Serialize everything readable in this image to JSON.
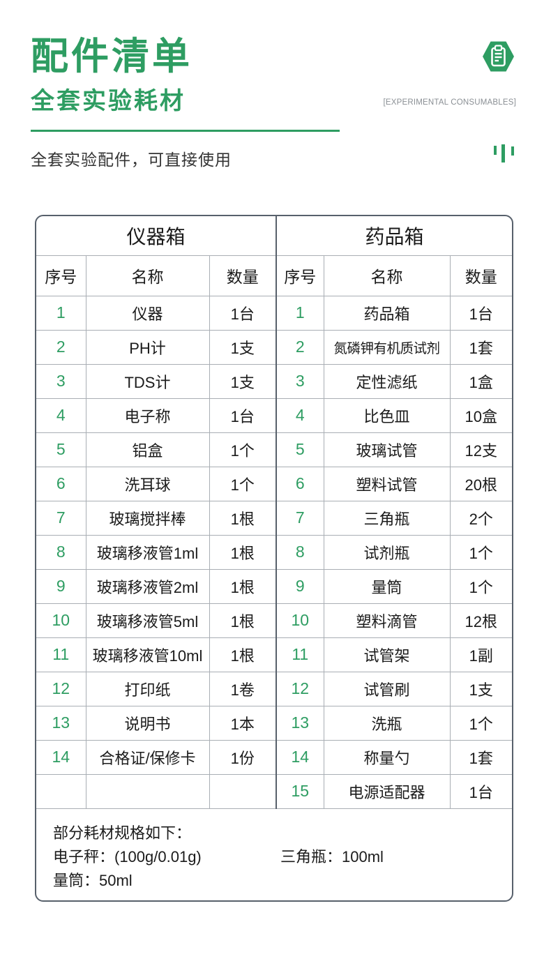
{
  "colors": {
    "green": "#2e9d62",
    "table_outer_border": "#57606b",
    "table_inner_border": "#a9aeb4",
    "text": "#1b1b1b",
    "eng_label_gray": "#8a8f94"
  },
  "header": {
    "title": "配件清单",
    "subtitle": "全套实验耗材",
    "subtitle_en": "[EXPERIMENTAL CONSUMABLES]",
    "tagline": "全套实验配件，可直接使用",
    "icon": "clipboard-hexagon-icon"
  },
  "table": {
    "left_title": "仪器箱",
    "right_title": "药品箱",
    "columns": [
      "序号",
      "名称",
      "数量"
    ],
    "rows": [
      {
        "l_no": "1",
        "l_name": "仪器",
        "l_qty": "1台",
        "r_no": "1",
        "r_name": "药品箱",
        "r_qty": "1台"
      },
      {
        "l_no": "2",
        "l_name": "PH计",
        "l_qty": "1支",
        "r_no": "2",
        "r_name": "氮磷钾有机质试剂",
        "r_qty": "1套"
      },
      {
        "l_no": "3",
        "l_name": "TDS计",
        "l_qty": "1支",
        "r_no": "3",
        "r_name": "定性滤纸",
        "r_qty": "1盒"
      },
      {
        "l_no": "4",
        "l_name": "电子称",
        "l_qty": "1台",
        "r_no": "4",
        "r_name": "比色皿",
        "r_qty": "10盒"
      },
      {
        "l_no": "5",
        "l_name": "铝盒",
        "l_qty": "1个",
        "r_no": "5",
        "r_name": "玻璃试管",
        "r_qty": "12支"
      },
      {
        "l_no": "6",
        "l_name": "洗耳球",
        "l_qty": "1个",
        "r_no": "6",
        "r_name": "塑料试管",
        "r_qty": "20根"
      },
      {
        "l_no": "7",
        "l_name": "玻璃搅拌棒",
        "l_qty": "1根",
        "r_no": "7",
        "r_name": "三角瓶",
        "r_qty": "2个"
      },
      {
        "l_no": "8",
        "l_name": "玻璃移液管1ml",
        "l_qty": "1根",
        "r_no": "8",
        "r_name": "试剂瓶",
        "r_qty": "1个"
      },
      {
        "l_no": "9",
        "l_name": "玻璃移液管2ml",
        "l_qty": "1根",
        "r_no": "9",
        "r_name": "量筒",
        "r_qty": "1个"
      },
      {
        "l_no": "10",
        "l_name": "玻璃移液管5ml",
        "l_qty": "1根",
        "r_no": "10",
        "r_name": "塑料滴管",
        "r_qty": "12根"
      },
      {
        "l_no": "11",
        "l_name": "玻璃移液管10ml",
        "l_qty": "1根",
        "r_no": "11",
        "r_name": "试管架",
        "r_qty": "1副"
      },
      {
        "l_no": "12",
        "l_name": "打印纸",
        "l_qty": "1卷",
        "r_no": "12",
        "r_name": "试管刷",
        "r_qty": "1支"
      },
      {
        "l_no": "13",
        "l_name": "说明书",
        "l_qty": "1本",
        "r_no": "13",
        "r_name": "洗瓶",
        "r_qty": "1个"
      },
      {
        "l_no": "14",
        "l_name": "合格证/保修卡",
        "l_qty": "1份",
        "r_no": "14",
        "r_name": "称量勺",
        "r_qty": "1套"
      },
      {
        "l_no": "",
        "l_name": "",
        "l_qty": "",
        "r_no": "15",
        "r_name": "电源适配器",
        "r_qty": "1台"
      }
    ],
    "footer": {
      "line1": "部分耗材规格如下：",
      "line2_left": "电子秤：(100g/0.01g)",
      "line2_right": "三角瓶：100ml",
      "line3": "量筒：50ml"
    }
  }
}
